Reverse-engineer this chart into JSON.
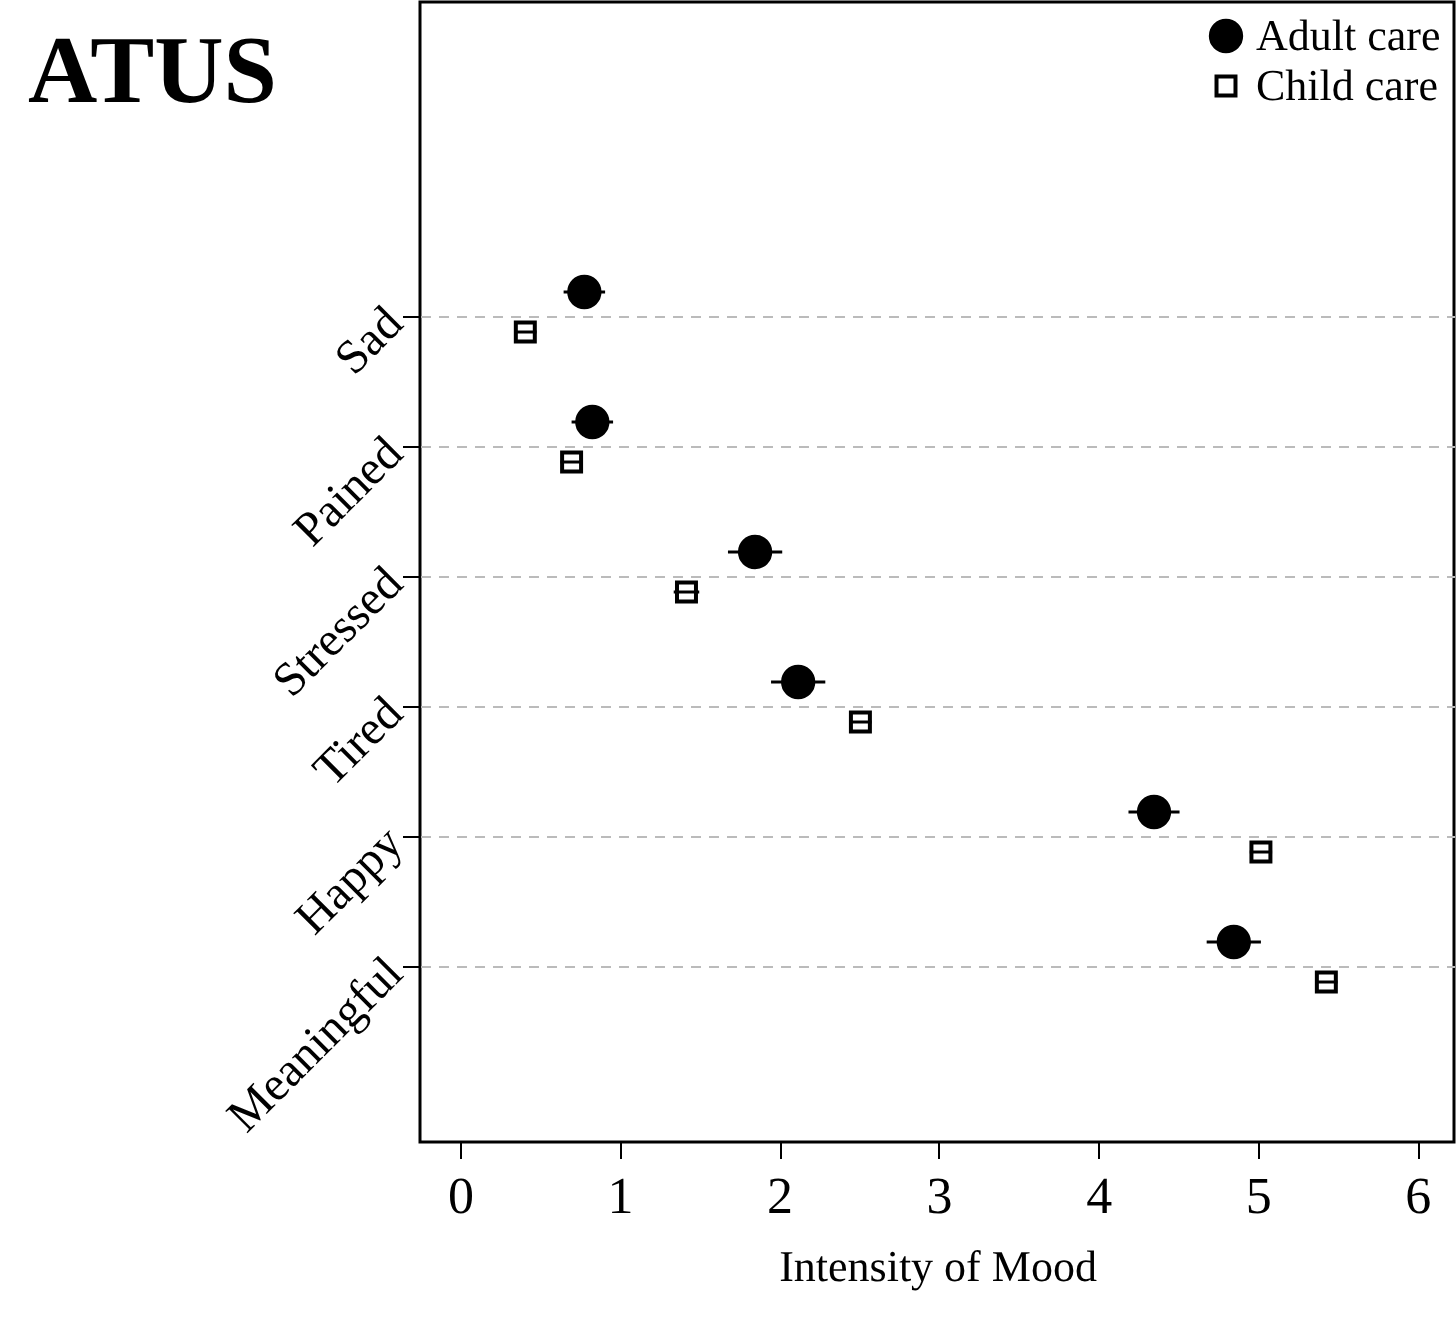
{
  "chart_data": {
    "type": "scatter",
    "title": "ATUS",
    "xlabel": "Intensity of Mood",
    "categories": [
      "Sad",
      "Pained",
      "Stressed",
      "Tired",
      "Happy",
      "Meaningful"
    ],
    "orientation": "horizontal",
    "xlim": [
      -0.25,
      6.23
    ],
    "xticks": [
      0,
      1,
      2,
      3,
      4,
      5,
      6
    ],
    "grid": "y",
    "legend": "top right",
    "series": [
      {
        "name": "Adult care",
        "color": "#000000",
        "marker": "circle",
        "values": [
          0.78,
          0.83,
          1.85,
          2.12,
          4.35,
          4.85
        ],
        "errors": [
          0.13,
          0.13,
          0.17,
          0.17,
          0.16,
          0.17
        ]
      },
      {
        "name": "Child care",
        "color": "#000000",
        "marker": "square",
        "values": [
          0.41,
          0.7,
          1.42,
          2.51,
          5.02,
          5.43
        ],
        "errors": [
          0.07,
          0.07,
          0.08,
          0.07,
          0.07,
          0.07
        ]
      }
    ]
  }
}
